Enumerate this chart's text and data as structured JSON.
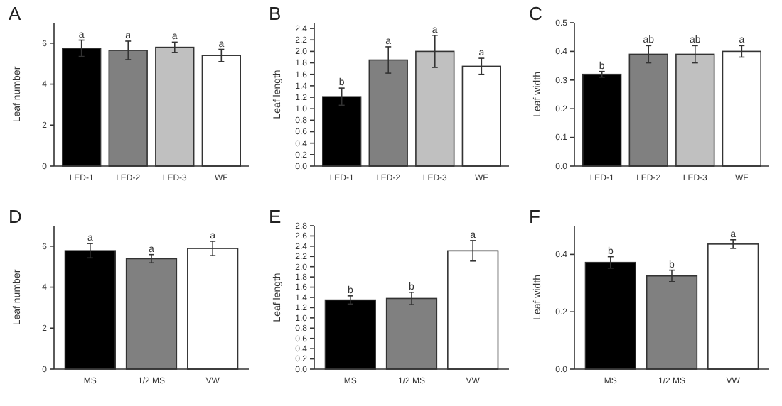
{
  "chart_data": [
    {
      "type": "bar",
      "title": "A",
      "ylabel": "Leaf number",
      "categories": [
        "LED-1",
        "LED-2",
        "LED-3",
        "WF"
      ],
      "values": [
        5.75,
        5.65,
        5.8,
        5.4
      ],
      "errors": [
        0.4,
        0.45,
        0.25,
        0.3
      ],
      "colors": [
        "#000000",
        "#808080",
        "#c0c0c0",
        "#ffffff"
      ],
      "ylim": [
        0,
        7
      ],
      "yticks": [
        0,
        2,
        4,
        6
      ],
      "annotations": [
        {
          "text": "a",
          "x": "LED-1",
          "y": 6.15
        },
        {
          "text": "a",
          "x": "LED-2",
          "y": 6.1
        },
        {
          "text": "a",
          "x": "LED-3",
          "y": 6.05
        },
        {
          "text": "a",
          "x": "WF",
          "y": 5.7
        }
      ]
    },
    {
      "type": "bar",
      "title": "B",
      "ylabel": "Leaf length",
      "categories": [
        "LED-1",
        "LED-2",
        "LED-3",
        "WF"
      ],
      "values": [
        1.21,
        1.85,
        2.0,
        1.74
      ],
      "errors": [
        0.15,
        0.23,
        0.28,
        0.14
      ],
      "colors": [
        "#000000",
        "#808080",
        "#c0c0c0",
        "#ffffff"
      ],
      "ylim": [
        0,
        2.5
      ],
      "yticks": [
        {
          "value": 0,
          "label": "0.0"
        },
        0.2,
        0.4,
        0.6,
        0.8,
        {
          "value": 1,
          "label": "1.0"
        },
        1.2,
        1.4,
        1.6,
        1.8,
        {
          "value": 2,
          "label": "2.0"
        },
        2.2,
        2.4
      ],
      "annotations": [
        {
          "text": "b",
          "x": "LED-1",
          "y": 1.36
        },
        {
          "text": "a",
          "x": "LED-2",
          "y": 2.08
        },
        {
          "text": "a",
          "x": "LED-3",
          "y": 2.28
        },
        {
          "text": "a",
          "x": "WF",
          "y": 1.88
        }
      ]
    },
    {
      "type": "bar",
      "title": "C",
      "ylabel": "Leaf width",
      "categories": [
        "LED-1",
        "LED-2",
        "LED-3",
        "WF"
      ],
      "values": [
        0.32,
        0.39,
        0.39,
        0.4
      ],
      "errors": [
        0.01,
        0.03,
        0.03,
        0.02
      ],
      "colors": [
        "#000000",
        "#808080",
        "#c0c0c0",
        "#ffffff"
      ],
      "ylim": [
        0,
        0.5
      ],
      "yticks": [
        {
          "value": 0,
          "label": "0.0"
        },
        0.1,
        0.2,
        0.3,
        0.4,
        0.5
      ],
      "annotations": [
        {
          "text": "b",
          "x": "LED-1",
          "y": 0.33
        },
        {
          "text": "ab",
          "x": "LED-2",
          "y": 0.42
        },
        {
          "text": "ab",
          "x": "LED-3",
          "y": 0.42
        },
        {
          "text": "a",
          "x": "WF",
          "y": 0.42
        }
      ]
    },
    {
      "type": "bar",
      "title": "D",
      "ylabel": "Leaf number",
      "categories": [
        "MS",
        "1/2 MS",
        "VW"
      ],
      "values": [
        5.78,
        5.39,
        5.89
      ],
      "errors": [
        0.35,
        0.2,
        0.35
      ],
      "colors": [
        "#000000",
        "#808080",
        "#ffffff"
      ],
      "ylim": [
        0,
        7
      ],
      "yticks": [
        0,
        2,
        4,
        6
      ],
      "annotations": [
        {
          "text": "a",
          "x": "MS",
          "y": 6.13
        },
        {
          "text": "a",
          "x": "1/2 MS",
          "y": 5.59
        },
        {
          "text": "a",
          "x": "VW",
          "y": 6.24
        }
      ]
    },
    {
      "type": "bar",
      "title": "E",
      "ylabel": "Leaf length",
      "categories": [
        "MS",
        "1/2 MS",
        "VW"
      ],
      "values": [
        1.35,
        1.38,
        2.31
      ],
      "errors": [
        0.08,
        0.12,
        0.2
      ],
      "colors": [
        "#000000",
        "#808080",
        "#ffffff"
      ],
      "ylim": [
        0,
        2.8
      ],
      "yticks": [
        {
          "value": 0,
          "label": "0.0"
        },
        0.2,
        0.4,
        0.6,
        0.8,
        {
          "value": 1,
          "label": "1.0"
        },
        1.2,
        1.4,
        1.6,
        1.8,
        {
          "value": 2,
          "label": "2.0"
        },
        2.2,
        2.4,
        2.6,
        2.8
      ],
      "annotations": [
        {
          "text": "b",
          "x": "MS",
          "y": 1.43
        },
        {
          "text": "b",
          "x": "1/2 MS",
          "y": 1.5
        },
        {
          "text": "a",
          "x": "VW",
          "y": 2.51
        }
      ]
    },
    {
      "type": "bar",
      "title": "F",
      "ylabel": "Leaf width",
      "categories": [
        "MS",
        "1/2 MS",
        "VW"
      ],
      "values": [
        0.372,
        0.325,
        0.436
      ],
      "errors": [
        0.02,
        0.02,
        0.015
      ],
      "colors": [
        "#000000",
        "#808080",
        "#ffffff"
      ],
      "ylim": [
        0,
        0.5
      ],
      "yticks": [
        {
          "value": 0,
          "label": "0.0"
        },
        0.2,
        0.4
      ],
      "annotations": [
        {
          "text": "b",
          "x": "MS",
          "y": 0.392
        },
        {
          "text": "b",
          "x": "1/2 MS",
          "y": 0.345
        },
        {
          "text": "a",
          "x": "VW",
          "y": 0.451
        }
      ]
    }
  ]
}
